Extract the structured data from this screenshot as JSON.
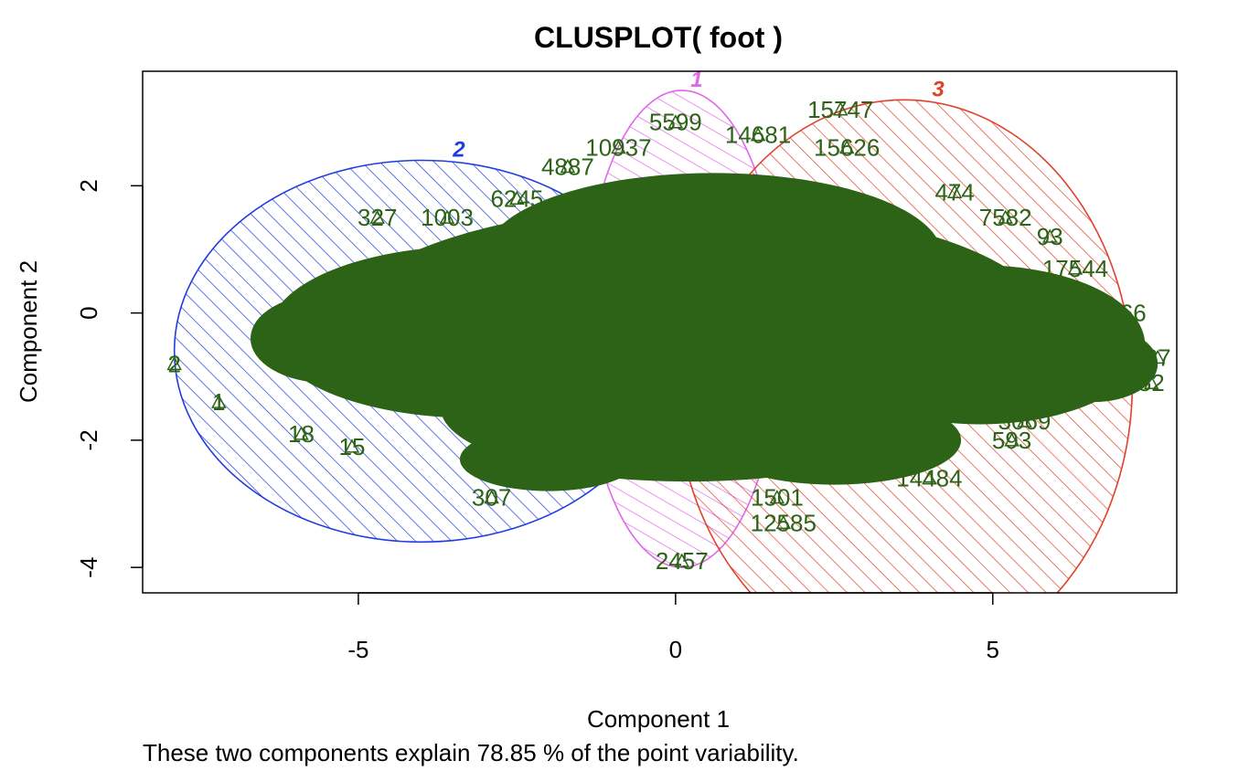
{
  "chart_data": {
    "type": "scatter",
    "title": "CLUSPLOT( foot )",
    "xlabel": "Component 1",
    "ylabel": "Component 2",
    "subtitle": "These two components explain 78.85 % of the point variability.",
    "xlim": [
      -8.4,
      7.9
    ],
    "ylim": [
      -4.4,
      3.8
    ],
    "x_ticks": [
      -5,
      0,
      5
    ],
    "y_ticks": [
      -4,
      -2,
      0,
      2
    ],
    "x_tick_labels": [
      "-5",
      "0",
      "5"
    ],
    "y_tick_labels": [
      "-4",
      "-2",
      "0",
      "2"
    ],
    "point_color": "#2d6317",
    "clusters": [
      {
        "label": "2",
        "color": "#1f3de0",
        "center": [
          -4.0,
          -0.6
        ],
        "rx": 3.9,
        "ry": 3.0,
        "hatch_angle": 45
      },
      {
        "label": "1",
        "color": "#e067e8",
        "center": [
          0.1,
          -0.25
        ],
        "rx": 1.55,
        "ry": 3.75,
        "hatch_angle": 60
      },
      {
        "label": "3",
        "color": "#e0412a",
        "center": [
          3.6,
          -1.1
        ],
        "rx": 3.6,
        "ry": 4.45,
        "hatch_angle": 45
      }
    ],
    "point_labels": [
      {
        "text": "5599",
        "x": 0.0,
        "y": 3.0
      },
      {
        "text": "15747",
        "x": 2.6,
        "y": 3.2
      },
      {
        "text": "14681",
        "x": 1.3,
        "y": 2.8
      },
      {
        "text": "15626",
        "x": 2.7,
        "y": 2.6
      },
      {
        "text": "10937",
        "x": -0.9,
        "y": 2.6
      },
      {
        "text": "4887",
        "x": -1.7,
        "y": 2.3
      },
      {
        "text": "327",
        "x": -4.7,
        "y": 1.5
      },
      {
        "text": "1003",
        "x": -3.6,
        "y": 1.5
      },
      {
        "text": "6245",
        "x": -2.5,
        "y": 1.8
      },
      {
        "text": "7582",
        "x": 5.2,
        "y": 1.5
      },
      {
        "text": "93",
        "x": 5.9,
        "y": 1.2
      },
      {
        "text": "474",
        "x": 4.4,
        "y": 1.9
      },
      {
        "text": "17544",
        "x": 6.3,
        "y": 0.7
      },
      {
        "text": "67566",
        "x": 6.9,
        "y": 0.0
      },
      {
        "text": "2",
        "x": -7.9,
        "y": -0.8
      },
      {
        "text": "1",
        "x": -7.2,
        "y": -1.4
      },
      {
        "text": "18",
        "x": -5.9,
        "y": -1.9
      },
      {
        "text": "15",
        "x": -5.1,
        "y": -2.1
      },
      {
        "text": "307",
        "x": -2.9,
        "y": -2.9
      },
      {
        "text": "2457",
        "x": 0.1,
        "y": -3.9
      },
      {
        "text": "12585",
        "x": 1.7,
        "y": -3.3
      },
      {
        "text": "1501",
        "x": 1.6,
        "y": -2.9
      },
      {
        "text": "14484",
        "x": 4.0,
        "y": -2.6
      },
      {
        "text": "593",
        "x": 5.3,
        "y": -2.0
      },
      {
        "text": "3069",
        "x": 5.5,
        "y": -1.7
      },
      {
        "text": "52",
        "x": 7.5,
        "y": -1.1
      },
      {
        "text": "37",
        "x": 7.6,
        "y": -0.7
      }
    ]
  }
}
